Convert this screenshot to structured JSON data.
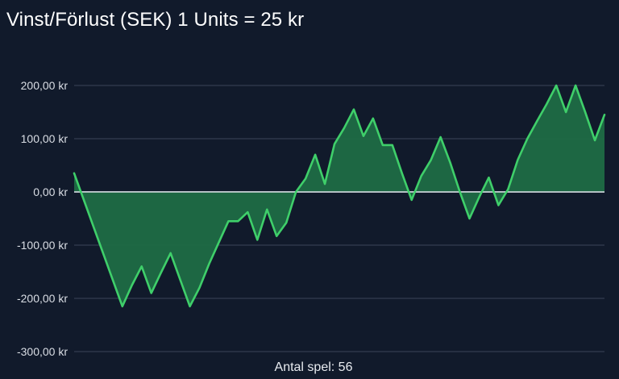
{
  "colors": {
    "background": "#111a2b",
    "line": "#3fcf6a",
    "area": "#1f6b45",
    "grid": "#3a4458",
    "zero_line": "#d6dbe2",
    "text": "#ffffff"
  },
  "chart_data": {
    "type": "area",
    "title": "Vinst/Förlust (SEK) 1 Units = 25 kr",
    "xlabel": "Antal spel: 56",
    "ylabel": "",
    "ylim": [
      -300,
      200
    ],
    "grid": true,
    "yticks": [
      {
        "value": 200,
        "label": "200,00 kr"
      },
      {
        "value": 100,
        "label": "100,00 kr"
      },
      {
        "value": 0,
        "label": "0,00 kr"
      },
      {
        "value": -100,
        "label": "-100,00 kr"
      },
      {
        "value": -200,
        "label": "-200,00 kr"
      },
      {
        "value": -300,
        "label": "-300,00 kr"
      }
    ],
    "x": [
      1,
      2,
      3,
      4,
      5,
      6,
      7,
      8,
      9,
      10,
      11,
      12,
      13,
      14,
      15,
      16,
      17,
      18,
      19,
      20,
      21,
      22,
      23,
      24,
      25,
      26,
      27,
      28,
      29,
      30,
      31,
      32,
      33,
      34,
      35,
      36,
      37,
      38,
      39,
      40,
      41,
      42,
      43,
      44,
      45,
      46,
      47,
      48,
      49,
      50,
      51,
      52,
      53,
      54,
      55,
      56
    ],
    "series": [
      {
        "values": [
          35,
          -15,
          -65,
          -115,
          -165,
          -215,
          -175,
          -140,
          -190,
          -152,
          -115,
          -165,
          -215,
          -180,
          -135,
          -95,
          -55,
          -55,
          -38,
          -90,
          -33,
          -83,
          -58,
          0,
          25,
          70,
          15,
          90,
          120,
          155,
          105,
          138,
          88,
          88,
          35,
          -15,
          30,
          60,
          103,
          55,
          0,
          -50,
          -10,
          27,
          -25,
          5,
          60,
          100,
          133,
          165,
          200,
          150,
          200,
          150,
          97,
          145
        ]
      }
    ]
  }
}
